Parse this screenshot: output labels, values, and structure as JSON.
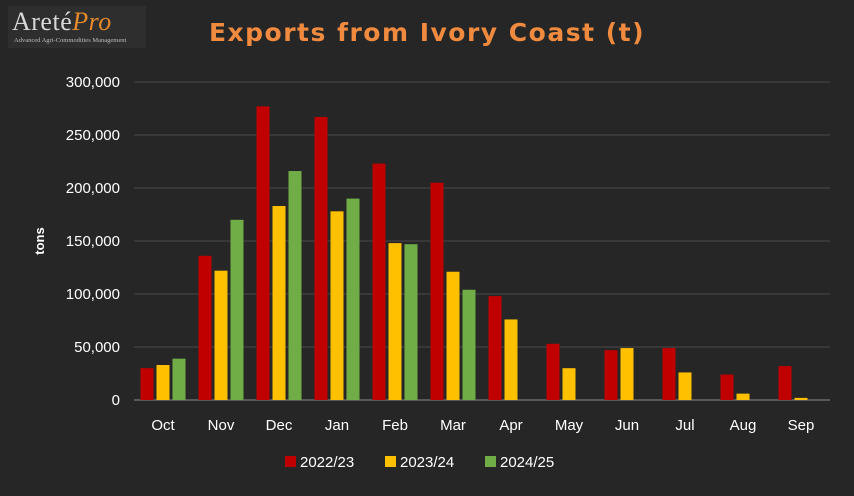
{
  "logo": {
    "brand_main": "Areté",
    "brand_pro": "Pro",
    "tagline": "Advanced Agri-Commodities Management"
  },
  "chart_data": {
    "type": "bar",
    "title": "Exports from Ivory Coast (t)",
    "ylabel": "tons",
    "xlabel": "",
    "ylim": [
      0,
      300000
    ],
    "yticks": [
      0,
      50000,
      100000,
      150000,
      200000,
      250000,
      300000
    ],
    "ytick_labels": [
      "0",
      "50,000",
      "100,000",
      "150,000",
      "200,000",
      "250,000",
      "300,000"
    ],
    "grid": true,
    "legend_position": "bottom",
    "categories": [
      "Oct",
      "Nov",
      "Dec",
      "Jan",
      "Feb",
      "Mar",
      "Apr",
      "May",
      "Jun",
      "Jul",
      "Aug",
      "Sep"
    ],
    "series": [
      {
        "name": "2022/23",
        "color": "#c00000",
        "values": [
          30000,
          136000,
          277000,
          267000,
          223000,
          205000,
          98000,
          53000,
          47000,
          49000,
          24000,
          32000
        ]
      },
      {
        "name": "2023/24",
        "color": "#ffc000",
        "values": [
          33000,
          122000,
          183000,
          178000,
          148000,
          121000,
          76000,
          30000,
          49000,
          26000,
          6000,
          2000
        ]
      },
      {
        "name": "2024/25",
        "color": "#70ad47",
        "values": [
          39000,
          170000,
          216000,
          190000,
          147000,
          104000,
          null,
          null,
          null,
          null,
          null,
          null
        ]
      }
    ]
  }
}
